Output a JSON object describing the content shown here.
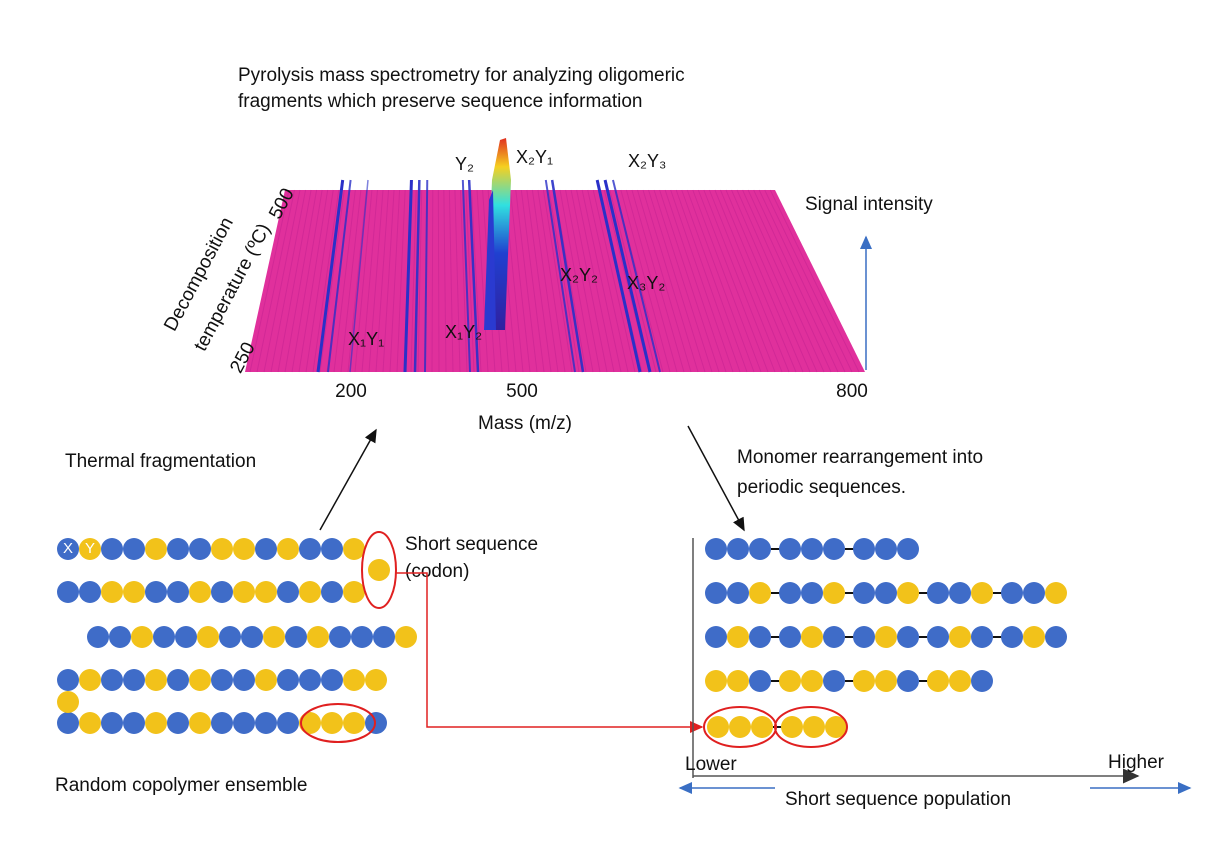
{
  "title": [
    "Pyrolysis mass spectrometry for analyzing oligomeric",
    "fragments which preserve sequence information"
  ],
  "plot": {
    "y_axis_label": [
      "Decomposition",
      "temperature (ºC)"
    ],
    "y_ticks": [
      "500",
      "250"
    ],
    "x_ticks": [
      "200",
      "500",
      "800"
    ],
    "x_axis_label": "Mass (m/z)",
    "z_axis_label": "Signal intensity",
    "peaks": [
      "Y₂",
      "X₂Y₁",
      "X₂Y₃",
      "X₂Y₂",
      "X₃Y₂",
      "X₁Y₁",
      "X₁Y₂"
    ]
  },
  "left": {
    "arrow_label": "Thermal fragmentation",
    "bead_x": "X",
    "bead_y": "Y",
    "callout": [
      "Short sequence",
      "(codon)"
    ],
    "caption": "Random copolymer ensemble"
  },
  "right": {
    "arrow_label": [
      "Monomer rearrangement into",
      "periodic sequences."
    ],
    "axis_low": "Lower",
    "axis_high": "Higher",
    "axis_label": "Short sequence population"
  }
}
